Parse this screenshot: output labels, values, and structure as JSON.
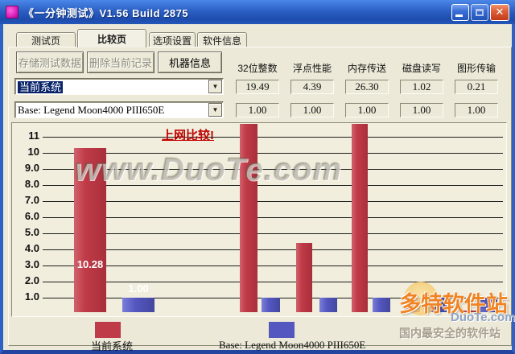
{
  "window": {
    "title": "《一分钟测试》V1.56 Build 2875"
  },
  "tabs": [
    {
      "label": "测试页",
      "active": false
    },
    {
      "label": "比较页",
      "active": true
    },
    {
      "label": "选项设置",
      "active": false
    },
    {
      "label": "软件信息",
      "active": false
    }
  ],
  "toolbar": {
    "save_label": "存储测试数据",
    "delete_label": "删除当前记录",
    "machine_info_label": "机器信息"
  },
  "columns": [
    "32位整数",
    "浮点性能",
    "内存传送",
    "磁盘读写",
    "图形传输"
  ],
  "selectors": {
    "current": "当前系统",
    "base": "Base: Legend Moon4000 PIII650E"
  },
  "values": {
    "current": [
      "19.49",
      "4.39",
      "26.30",
      "1.02",
      "0.21"
    ],
    "base": [
      "1.00",
      "1.00",
      "1.00",
      "1.00",
      "1.00"
    ]
  },
  "chart_data": {
    "type": "bar",
    "categories": [
      "",
      "32位整数",
      "浮点性能",
      "内存传送",
      "磁盘读写",
      "图形传输"
    ],
    "series": [
      {
        "name": "当前系统",
        "color_css": "red",
        "color": "#bf3b47",
        "values": [
          10.28,
          19.49,
          4.39,
          26.3,
          1.02,
          0.21
        ]
      },
      {
        "name": "Base: Legend Moon4000 PIII650E",
        "color_css": "blue",
        "color": "#5457c0",
        "values": [
          1.0,
          1.0,
          1.0,
          1.0,
          1.0,
          1.0
        ]
      }
    ],
    "bar_value_labels": [
      "10.28",
      "1.00"
    ],
    "yticks": [
      "11",
      "10",
      "9.0",
      "8.0",
      "7.0",
      "6.0",
      "5.0",
      "4.0",
      "3.0",
      "2.0",
      "1.0"
    ],
    "ytick_values": [
      11,
      10,
      9,
      8,
      7,
      6,
      5,
      4,
      3,
      2,
      1
    ],
    "ylim": [
      0.1,
      11.8
    ],
    "grid": true,
    "clipped_bars_note": "19.49 and 26.30 exceed axis top and are clipped",
    "annotation_link": "上网比较!",
    "watermark": "www.DuoTe.com",
    "legend_position": "bottom"
  },
  "legend": [
    {
      "label": "当前系统",
      "color": "#bf3b47"
    },
    {
      "label": "Base: Legend Moon4000 PIII650E",
      "color": "#5457c0"
    }
  ],
  "watermarks": {
    "corner_title": "多特软件站",
    "corner_site": "DuoTe.com",
    "corner_slogan": "国内最安全的软件站"
  }
}
